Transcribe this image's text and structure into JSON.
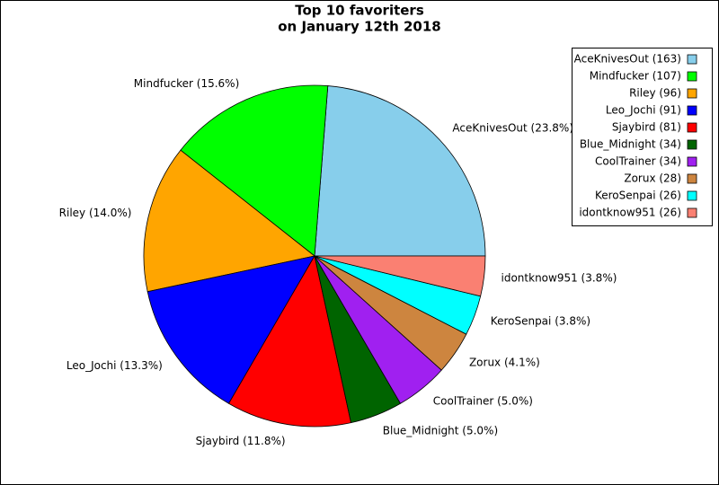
{
  "chart_data": {
    "type": "pie",
    "title": [
      "Top 10 favoriters",
      "on January 12th 2018"
    ],
    "categories": [
      "AceKnivesOut",
      "Mindfucker",
      "Riley",
      "Leo_Jochi",
      "Sjaybird",
      "Blue_Midnight",
      "CoolTrainer",
      "Zorux",
      "KeroSenpai",
      "idontknow951"
    ],
    "values": [
      163,
      107,
      96,
      91,
      81,
      34,
      34,
      28,
      26,
      26
    ],
    "value_labels": [
      "AceKnivesOut (163)",
      "Mindfucker (107)",
      "Riley (96)",
      "Leo_Jochi (91)",
      "Sjaybird (81)",
      "Blue_Midnight (34)",
      "CoolTrainer (34)",
      "Zorux (28)",
      "KeroSenpai (26)",
      "idontknow951 (26)"
    ],
    "percents": [
      23.8,
      15.6,
      14.0,
      13.3,
      11.8,
      5.0,
      5.0,
      4.1,
      3.8,
      3.8
    ],
    "percent_labels": [
      "AceKnivesOut (23.8%)",
      "Mindfucker (15.6%)",
      "Riley (14.0%)",
      "Leo_Jochi (13.3%)",
      "Sjaybird (11.8%)",
      "Blue_Midnight (5.0%)",
      "CoolTrainer (5.0%)",
      "Zorux (4.1%)",
      "KeroSenpai (3.8%)",
      "idontknow951 (3.8%)"
    ],
    "colors": [
      "#87ceeb",
      "#00ff00",
      "#ffa500",
      "#0000ff",
      "#ff0000",
      "#006400",
      "#a020f0",
      "#cd853f",
      "#00ffff",
      "#fa8072"
    ],
    "legend": "upper right"
  }
}
